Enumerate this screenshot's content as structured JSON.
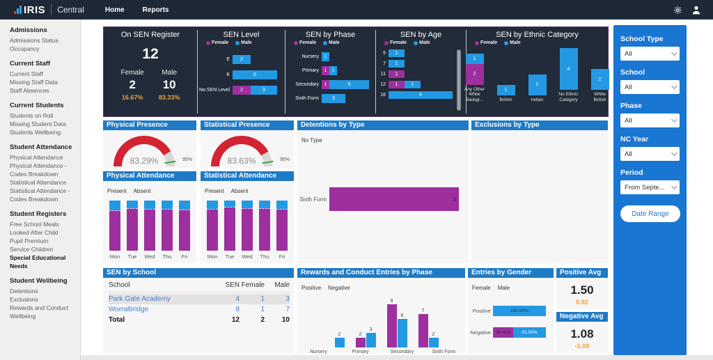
{
  "colors": {
    "female": "#9e2f9e",
    "male": "#2499e3",
    "positive": "#9e2f9e",
    "negative": "#2499e3",
    "present": "#9e2f9e",
    "absent": "#2499e3",
    "noType": "#9e2f9e",
    "titleBar": "#1e7ac5",
    "filterBlue": "#1976d2",
    "orange": "#f0a136",
    "gaugeRed": "#d42332",
    "gaugeRest": "#d8d8d8",
    "targetGreen": "#3fa33f",
    "linkBlue": "#4a80c4"
  },
  "topbar": {
    "brand": "IRIS",
    "product": "Central",
    "nav": [
      {
        "label": "Home"
      },
      {
        "label": "Reports"
      }
    ],
    "icons": [
      "gear-icon",
      "user-icon"
    ]
  },
  "sidebar": {
    "sections": [
      {
        "title": "Admissions",
        "items": [
          {
            "label": "Admissions Status"
          },
          {
            "label": "Occupancy"
          }
        ]
      },
      {
        "title": "Current Staff",
        "items": [
          {
            "label": "Current Staff"
          },
          {
            "label": "Missing Staff Data"
          },
          {
            "label": "Staff Absences"
          }
        ]
      },
      {
        "title": "Current Students",
        "items": [
          {
            "label": "Students on Roll"
          },
          {
            "label": "Missing Student Data"
          },
          {
            "label": "Students Wellbeing"
          }
        ]
      },
      {
        "title": "Student Attendance",
        "items": [
          {
            "label": "Physical Attendance"
          },
          {
            "label": "Physical Attendance - Codes Breakdown"
          },
          {
            "label": "Statistical Attendance"
          },
          {
            "label": "Statistical Attendance - Codes Breakdown"
          }
        ]
      },
      {
        "title": "Student Registers",
        "items": [
          {
            "label": "Free School Meals"
          },
          {
            "label": "Looked After Child"
          },
          {
            "label": "Pupil Premium"
          },
          {
            "label": "Service Children"
          },
          {
            "label": "Special Educational Needs",
            "selected": true
          }
        ]
      },
      {
        "title": "Student Wellbeing",
        "items": [
          {
            "label": "Detentions"
          },
          {
            "label": "Exclusions"
          },
          {
            "label": "Rewards and Conduct"
          },
          {
            "label": "Wellbeing"
          }
        ]
      }
    ]
  },
  "cards": {
    "on_sen_register": {
      "title": "On SEN Register",
      "total": "12",
      "female_label": "Female",
      "female_value": "2",
      "female_pct": "16.67%",
      "male_label": "Male",
      "male_value": "10",
      "male_pct": "83.33%"
    },
    "sen_level": {
      "title": "SEN Level",
      "legend": [
        {
          "label": "Female",
          "color": "female"
        },
        {
          "label": "Male",
          "color": "male"
        }
      ],
      "max": 5,
      "rows": [
        {
          "label": "E",
          "segments": [
            {
              "series": "male",
              "value": 2
            }
          ]
        },
        {
          "label": "K",
          "segments": [
            {
              "series": "male",
              "value": 5
            }
          ]
        },
        {
          "label": "No SEN Level",
          "segments": [
            {
              "series": "female",
              "value": 2
            },
            {
              "series": "male",
              "value": 3
            }
          ]
        }
      ]
    },
    "sen_by_phase": {
      "title": "SEN by Phase",
      "legend": [
        {
          "label": "Female",
          "color": "female"
        },
        {
          "label": "Male",
          "color": "male"
        }
      ],
      "max": 6,
      "rows": [
        {
          "label": "Nursery",
          "segments": [
            {
              "series": "male",
              "value": 1
            }
          ]
        },
        {
          "label": "Primary",
          "segments": [
            {
              "series": "female",
              "value": 1
            },
            {
              "series": "male",
              "value": 1
            }
          ]
        },
        {
          "label": "Secondary",
          "segments": [
            {
              "series": "female",
              "value": 1
            },
            {
              "series": "male",
              "value": 5
            }
          ]
        },
        {
          "label": "Sixth Form",
          "segments": [
            {
              "series": "male",
              "value": 3
            }
          ]
        }
      ]
    },
    "sen_by_age": {
      "title": "SEN by Age",
      "legend": [
        {
          "label": "Female",
          "color": "female"
        },
        {
          "label": "Male",
          "color": "male"
        }
      ],
      "max": 4,
      "rows": [
        {
          "label": "5",
          "segments": [
            {
              "series": "male",
              "value": 1
            }
          ]
        },
        {
          "label": "7",
          "segments": [
            {
              "series": "male",
              "value": 1
            }
          ]
        },
        {
          "label": "11",
          "segments": [
            {
              "series": "female",
              "value": 1
            }
          ]
        },
        {
          "label": "12",
          "segments": [
            {
              "series": "female",
              "value": 1
            },
            {
              "series": "male",
              "value": 1
            }
          ]
        },
        {
          "label": "16",
          "segments": [
            {
              "series": "male",
              "value": 4
            }
          ]
        }
      ]
    },
    "sen_by_ethnic": {
      "title": "SEN by Ethnic Category",
      "legend": [
        {
          "label": "Female",
          "color": "female"
        },
        {
          "label": "Male",
          "color": "male"
        }
      ],
      "max": 4,
      "columns": [
        {
          "label": "Any Other White Backgr...",
          "segments": [
            {
              "series": "male",
              "value": 1
            },
            {
              "series": "female",
              "value": 2
            }
          ]
        },
        {
          "label": "British",
          "segments": [
            {
              "series": "male",
              "value": 1
            }
          ]
        },
        {
          "label": "Indian",
          "segments": [
            {
              "series": "male",
              "value": 2
            }
          ]
        },
        {
          "label": "No Ethnic Category",
          "segments": [
            {
              "series": "male",
              "value": 4
            }
          ]
        },
        {
          "label": "White British",
          "segments": [
            {
              "series": "male",
              "value": 2
            }
          ]
        }
      ]
    },
    "physical_presence": {
      "title": "Physical Presence",
      "value": 83.29,
      "value_label": "83.29%",
      "target": 95,
      "target_label": "95%"
    },
    "statistical_presence": {
      "title": "Statistical Presence",
      "value": 83.63,
      "value_label": "83.63%",
      "target": 95,
      "target_label": "95%"
    },
    "physical_attendance": {
      "title": "Physical Attendance",
      "legend": [
        {
          "label": "Present",
          "color": "present"
        },
        {
          "label": "Absent",
          "color": "absent"
        }
      ],
      "days": [
        "Mon",
        "Tue",
        "Wed",
        "Thu",
        "Fri"
      ],
      "present_pct": [
        81,
        85,
        84,
        83,
        82
      ]
    },
    "statistical_attendance": {
      "title": "Statistical Attendance",
      "legend": [
        {
          "label": "Present",
          "color": "present"
        },
        {
          "label": "Absent",
          "color": "absent"
        }
      ],
      "days": [
        "Mon",
        "Tue",
        "Wed",
        "Thu",
        "Fri"
      ],
      "present_pct": [
        83,
        87,
        85,
        85,
        84
      ]
    },
    "detentions_by_type": {
      "title": "Detentions by Type",
      "legend": [
        {
          "label": "No Type",
          "color": "noType"
        }
      ],
      "rows": [
        {
          "label": "Sixth Form",
          "value": 2
        }
      ],
      "max": 2
    },
    "exclusions_by_type": {
      "title": "Exclusions by Type"
    },
    "sen_by_school": {
      "title": "SEN by School",
      "headers": [
        "School",
        "SEN",
        "Female",
        "Male"
      ],
      "rows": [
        {
          "school": "Park Gate Academy",
          "sen": "4",
          "female": "1",
          "male": "3",
          "selected": true
        },
        {
          "school": "Worralbridge",
          "sen": "8",
          "female": "1",
          "male": "7",
          "selected": false
        }
      ],
      "total": {
        "school": "Total",
        "sen": "12",
        "female": "2",
        "male": "10"
      }
    },
    "rewards_by_phase": {
      "title": "Rewards and Conduct Entries by Phase",
      "legend": [
        {
          "label": "Positive",
          "color": "positive"
        },
        {
          "label": "Negative",
          "color": "negative"
        }
      ],
      "categories": [
        "Nursery",
        "Primary",
        "Secondary",
        "Sixth Form"
      ],
      "series": [
        {
          "name": "Positive",
          "color": "positive",
          "values": [
            0,
            2,
            9,
            7
          ]
        },
        {
          "name": "Negative",
          "color": "negative",
          "values": [
            2,
            3,
            6,
            2
          ]
        }
      ],
      "max": 9
    },
    "entries_by_gender": {
      "title": "Entries by Gender",
      "legend": [
        {
          "label": "Female",
          "color": "female"
        },
        {
          "label": "Male",
          "color": "male"
        }
      ],
      "rows": [
        {
          "label": "Positive",
          "segments": [
            {
              "series": "male",
              "pct": 100,
              "label": "100.00%",
              "dark_label": true
            }
          ]
        },
        {
          "label": "Negative",
          "segments": [
            {
              "series": "female",
              "pct": 38.46,
              "label": "38.46%",
              "dark_label": true
            },
            {
              "series": "male",
              "pct": 61.54,
              "label": "61.54%",
              "dark_label": false
            }
          ]
        }
      ]
    },
    "positive_avg": {
      "title": "Positive Avg",
      "value": "1.50",
      "sub": "0.92"
    },
    "negative_avg": {
      "title": "Negative Avg",
      "value": "1.08",
      "sub": "-1.08"
    }
  },
  "filters": {
    "groups": [
      {
        "label": "School Type",
        "value": "All"
      },
      {
        "label": "School",
        "value": "All"
      },
      {
        "label": "Phase",
        "value": "All"
      },
      {
        "label": "NC Year",
        "value": "All"
      },
      {
        "label": "Period",
        "value": "From Septe..."
      }
    ],
    "date_range_label": "Date Range"
  }
}
